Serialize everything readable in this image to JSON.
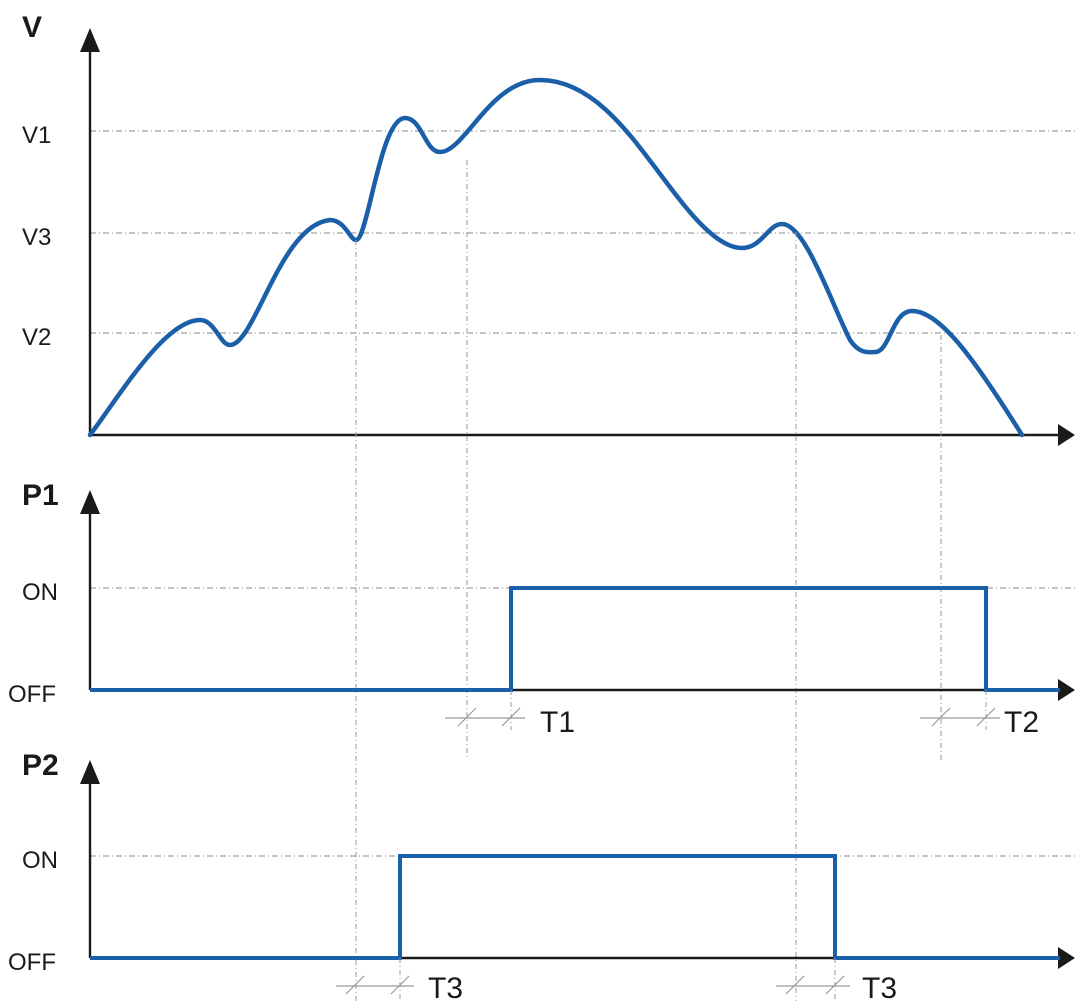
{
  "velocity_panel": {
    "axis_label": "V",
    "levels": [
      {
        "label": "V1"
      },
      {
        "label": "V3"
      },
      {
        "label": "V2"
      }
    ]
  },
  "p1_panel": {
    "axis_label": "P1",
    "on_label": "ON",
    "off_label": "OFF",
    "time_markers": [
      {
        "label": "T1"
      },
      {
        "label": "T2"
      }
    ]
  },
  "p2_panel": {
    "axis_label": "P2",
    "on_label": "ON",
    "off_label": "OFF",
    "time_markers": [
      {
        "label": "T3"
      },
      {
        "label": "T3"
      }
    ]
  },
  "colors": {
    "signal": "#1b5fa8",
    "axis": "#1a1a1a",
    "guide": "#8a8a8a"
  }
}
